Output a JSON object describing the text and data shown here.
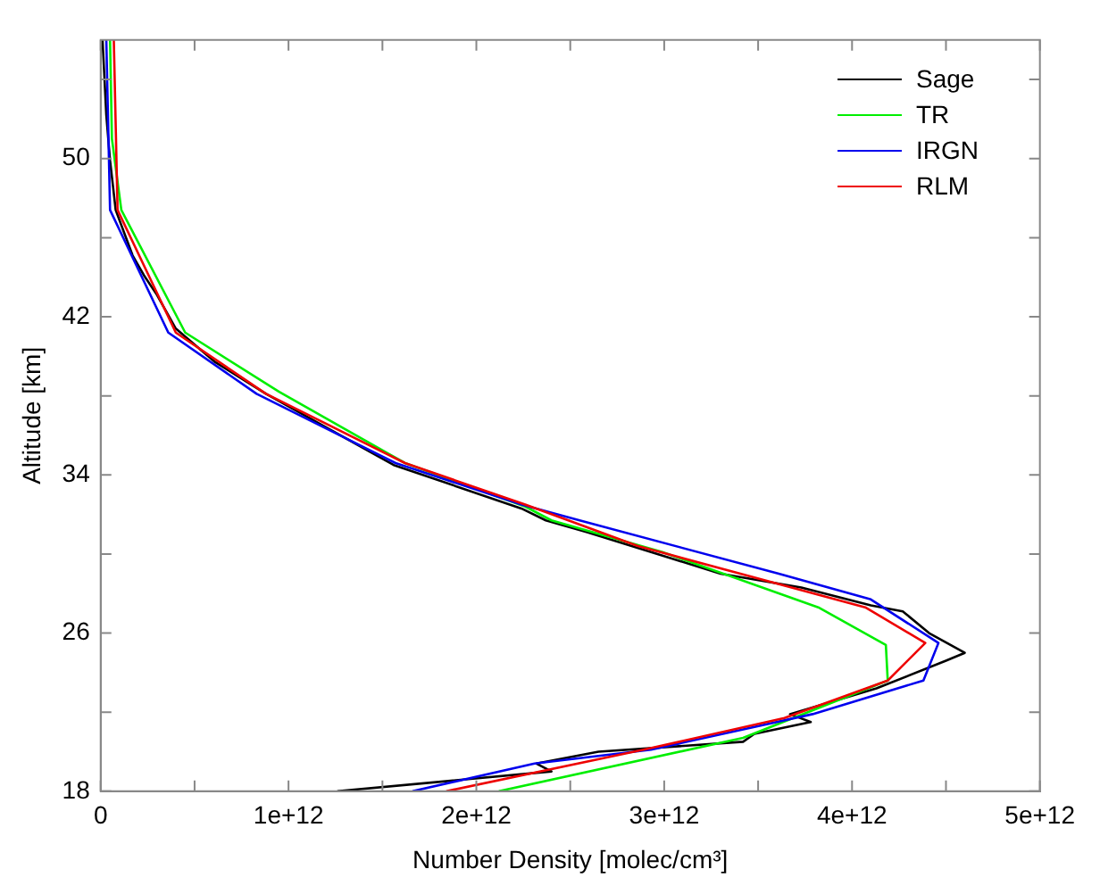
{
  "chart_data": {
    "type": "line",
    "xlabel": "Number Density [molec/cm³]",
    "ylabel": "Altitude [km]",
    "xlim": [
      0,
      5000000000000.0
    ],
    "xticks": [
      0,
      {
        "value": 500000000000.0,
        "label": null
      },
      {
        "value": 1000000000000.0,
        "label": "1e+12"
      },
      {
        "value": 1500000000000.0,
        "label": null
      },
      {
        "value": 2000000000000.0,
        "label": "2e+12"
      },
      {
        "value": 2500000000000.0,
        "label": null
      },
      {
        "value": 3000000000000.0,
        "label": "3e+12"
      },
      {
        "value": 3500000000000.0,
        "label": null
      },
      {
        "value": 4000000000000.0,
        "label": "4e+12"
      },
      {
        "value": 4500000000000.0,
        "label": null
      },
      {
        "value": 5000000000000.0,
        "label": "5e+12"
      }
    ],
    "ylim": [
      18,
      56
    ],
    "yticks": [
      18,
      {
        "value": 22,
        "label": null
      },
      26,
      {
        "value": 30,
        "label": null
      },
      34,
      {
        "value": 38,
        "label": null
      },
      42,
      {
        "value": 46,
        "label": null
      },
      50,
      {
        "value": 54,
        "label": null
      }
    ],
    "grid": false,
    "legend": "top right",
    "marker": "none",
    "line_style": "solid",
    "series": [
      {
        "name": "Sage",
        "color": "#000000",
        "x": [
          1260000000000.0,
          2400000000000.0,
          2320000000000.0,
          2650000000000.0,
          3420000000000.0,
          3480000000000.0,
          3780000000000.0,
          3670000000000.0,
          4130000000000.0,
          4500000000000.0,
          4600000000000.0,
          4410000000000.0,
          4270000000000.0,
          4100000000000.0,
          3730000000000.0,
          3300000000000.0,
          2930000000000.0,
          2590000000000.0,
          2370000000000.0,
          2240000000000.0,
          1560000000000.0,
          880000000000.0,
          610000000000.0,
          400000000000.0,
          300000000000.0,
          230000000000.0,
          170000000000.0,
          80000000000.0,
          50000000000.0,
          30000000000.0,
          10000000000.0
        ],
        "values": [
          18,
          19,
          19.4,
          20,
          20.5,
          20.9,
          21.5,
          21.9,
          23.2,
          24.6,
          25,
          26,
          27.1,
          27.4,
          28.3,
          29,
          30.1,
          31.1,
          31.7,
          32.3,
          34.5,
          38.1,
          39.7,
          41.4,
          43.1,
          44.1,
          45.1,
          47.4,
          49.9,
          52.2,
          56
        ]
      },
      {
        "name": "TR",
        "color": "#00ee00",
        "x": [
          2120000000000.0,
          3420000000000.0,
          4190000000000.0,
          4180000000000.0,
          3820000000000.0,
          2990000000000.0,
          2400000000000.0,
          2260000000000.0,
          1620000000000.0,
          950000000000.0,
          450000000000.0,
          110000000000.0,
          60000000000.0,
          50000000000.0
        ],
        "values": [
          18,
          20.7,
          23.6,
          25.4,
          27.3,
          30.1,
          31.7,
          32.4,
          34.6,
          38.2,
          41.2,
          47.4,
          51,
          56
        ]
      },
      {
        "name": "IRGN",
        "color": "#0000ee",
        "x": [
          1660000000000.0,
          2310000000000.0,
          2930000000000.0,
          3790000000000.0,
          4380000000000.0,
          4460000000000.0,
          4100000000000.0,
          3610000000000.0,
          2550000000000.0,
          2240000000000.0,
          1570000000000.0,
          830000000000.0,
          360000000000.0,
          50000000000.0,
          30000000000.0
        ],
        "values": [
          18,
          19.4,
          20.1,
          21.9,
          23.6,
          25.5,
          27.7,
          29,
          31.7,
          32.5,
          34.6,
          38.1,
          41.2,
          47.4,
          56
        ]
      },
      {
        "name": "RLM",
        "color": "#ee0000",
        "x": [
          1840000000000.0,
          2890000000000.0,
          3640000000000.0,
          4190000000000.0,
          4390000000000.0,
          4070000000000.0,
          2860000000000.0,
          2490000000000.0,
          2260000000000.0,
          1620000000000.0,
          880000000000.0,
          400000000000.0,
          90000000000.0,
          70000000000.0
        ],
        "values": [
          18,
          20.1,
          21.7,
          23.6,
          25.5,
          27.3,
          30.4,
          31.7,
          32.5,
          34.6,
          38.1,
          41.2,
          47.4,
          56
        ]
      }
    ]
  }
}
